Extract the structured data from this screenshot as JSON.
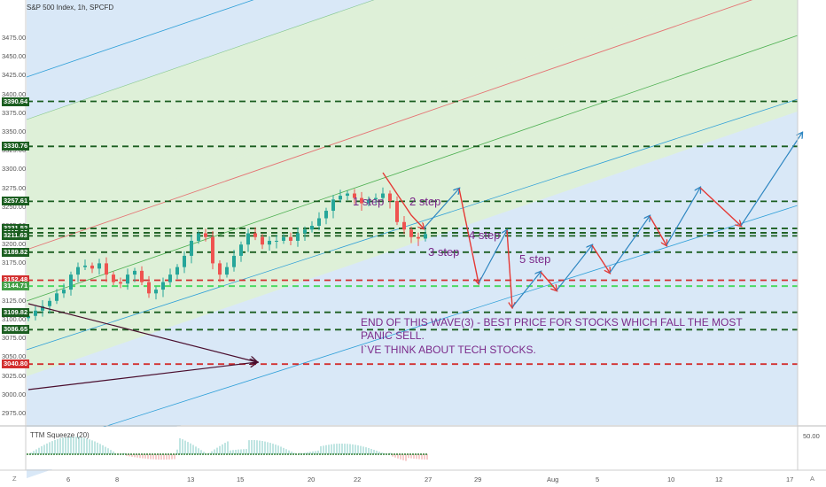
{
  "header": {
    "title": "S&P 500 Index, 1h, SPCFD"
  },
  "indicator": {
    "label": "TTM Squeeze (20)",
    "axis_value": "50.00"
  },
  "corner": {
    "left": "Z",
    "right": "A"
  },
  "annotations": {
    "steps": [
      "1 step",
      "2 step",
      "3 step",
      "4 step",
      "5 step"
    ],
    "note_lines": [
      "END OF THIS WAVE(3) - BEST PRICE FOR STOCKS WHICH FALL THE MOST",
      "PANIC SELL.",
      "I`VE THINK ABOUT TECH STOCKS."
    ]
  },
  "colors": {
    "up": "#26a69a",
    "down": "#ef5350",
    "green_line": "#1b5e20",
    "red_line": "#d32f2f",
    "arrow_red": "#e53935",
    "arrow_blue": "#2e86c1",
    "text_purple": "#7b2a8a",
    "arrow_maroon": "#4a0e2e"
  },
  "chart_data": {
    "type": "line",
    "title": "S&P 500 Index, 1h, SPCFD",
    "y_ticks": [
      "3475.00",
      "3450.00",
      "3425.00",
      "3400.00",
      "3375.00",
      "3350.00",
      "3325.00",
      "3300.00",
      "3275.00",
      "3250.00",
      "3225.00",
      "3200.00",
      "3175.00",
      "3150.00",
      "3125.00",
      "3100.00",
      "3075.00",
      "3050.00",
      "3025.00",
      "3000.00",
      "2975.00"
    ],
    "ylim": [
      2960,
      3490
    ],
    "x_ticks": [
      "6",
      "8",
      "13",
      "15",
      "20",
      "22",
      "27",
      "29",
      "Aug",
      "5",
      "10",
      "12",
      "17"
    ],
    "price_levels": [
      {
        "value": "3390.64",
        "kind": "green"
      },
      {
        "value": "3330.76",
        "kind": "green"
      },
      {
        "value": "3257.61",
        "kind": "green"
      },
      {
        "value": "3221.52",
        "kind": "green"
      },
      {
        "value": "3215.62",
        "kind": "green"
      },
      {
        "value": "3211.63",
        "kind": "green"
      },
      {
        "value": "3189.82",
        "kind": "green"
      },
      {
        "value": "3152.48",
        "kind": "red"
      },
      {
        "value": "3144.71",
        "kind": "lightgreen"
      },
      {
        "value": "3109.82",
        "kind": "green"
      },
      {
        "value": "3086.65",
        "kind": "green"
      },
      {
        "value": "3040.80",
        "kind": "red"
      }
    ]
  }
}
